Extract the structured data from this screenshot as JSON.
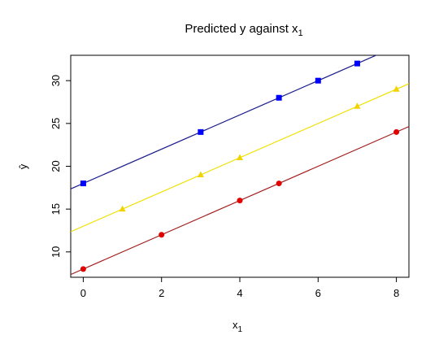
{
  "chart_data": {
    "type": "scatter",
    "title": "Predicted y against x",
    "title_sub": "1",
    "xlabel": "x",
    "xlabel_sub": "1",
    "ylabel": "ŷ",
    "xlim": [
      -0.32,
      8.32
    ],
    "ylim": [
      7.04,
      32.96
    ],
    "xticks": [
      0,
      2,
      4,
      6,
      8
    ],
    "yticks": [
      10,
      15,
      20,
      25,
      30
    ],
    "series": [
      {
        "color": "#0000ff",
        "line_color": "#1a1a8c",
        "marker": "square",
        "intercept": 18,
        "slope": 2,
        "x": [
          0,
          3,
          5,
          6,
          7
        ],
        "values": [
          18,
          24,
          28,
          30,
          32
        ]
      },
      {
        "color": "#f2d200",
        "line_color": "#f0e000",
        "marker": "triangle",
        "intercept": 13,
        "slope": 2,
        "x": [
          1,
          3,
          4,
          7,
          8
        ],
        "values": [
          15,
          19,
          21,
          27,
          29
        ]
      },
      {
        "color": "#e00000",
        "line_color": "#a52020",
        "marker": "circle",
        "intercept": 8,
        "slope": 2,
        "x": [
          0,
          2,
          4,
          5,
          8
        ],
        "values": [
          8,
          12,
          16,
          18,
          24
        ]
      }
    ]
  }
}
